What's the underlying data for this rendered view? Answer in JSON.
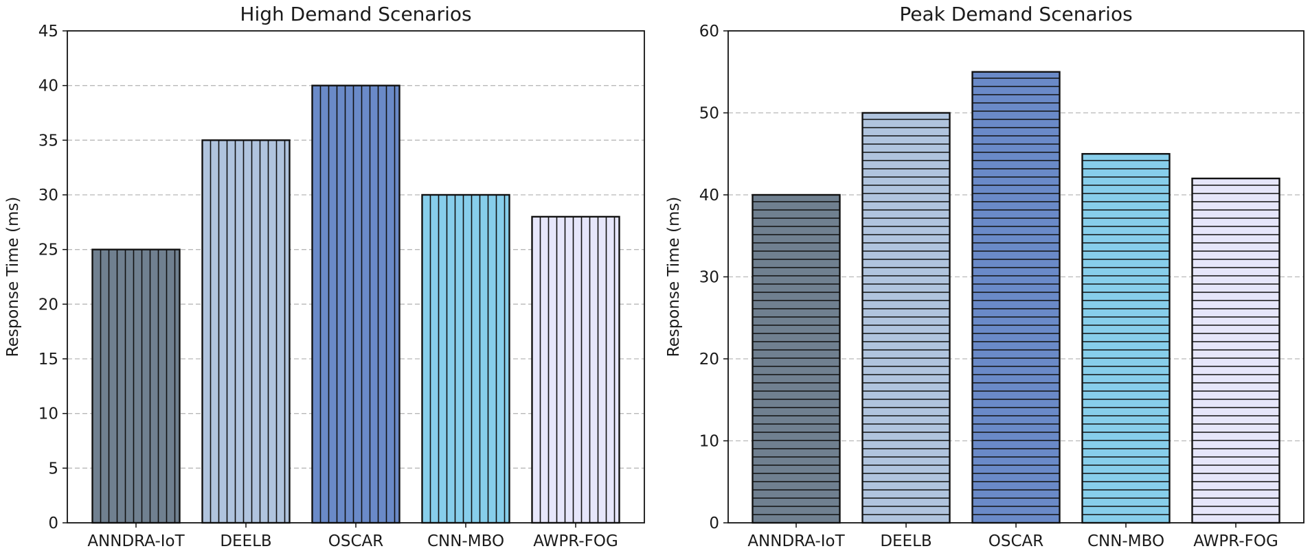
{
  "chart_data": [
    {
      "type": "bar",
      "title": "High Demand Scenarios",
      "xlabel": "",
      "ylabel": "Response Time (ms)",
      "categories": [
        "ANNDRA-IoT",
        "DEELB",
        "OSCAR",
        "CNN-MBO",
        "AWPR-FOG"
      ],
      "values": [
        25,
        35,
        40,
        30,
        28
      ],
      "ylim": [
        0,
        45
      ],
      "yticks": [
        0,
        5,
        10,
        15,
        20,
        25,
        30,
        35,
        40,
        45
      ],
      "grid": "horizontal dashed",
      "hatch": "vertical",
      "colors": [
        "#708090",
        "#b0c4de",
        "#6a8ac8",
        "#87ceeb",
        "#e6e6fa"
      ]
    },
    {
      "type": "bar",
      "title": "Peak Demand Scenarios",
      "xlabel": "",
      "ylabel": "Response Time (ms)",
      "categories": [
        "ANNDRA-IoT",
        "DEELB",
        "OSCAR",
        "CNN-MBO",
        "AWPR-FOG"
      ],
      "values": [
        40,
        50,
        55,
        45,
        42
      ],
      "ylim": [
        0,
        60
      ],
      "yticks": [
        0,
        10,
        20,
        30,
        40,
        50,
        60
      ],
      "grid": "horizontal dashed",
      "hatch": "horizontal",
      "colors": [
        "#708090",
        "#b0c4de",
        "#6a8ac8",
        "#87ceeb",
        "#e6e6fa"
      ]
    }
  ]
}
